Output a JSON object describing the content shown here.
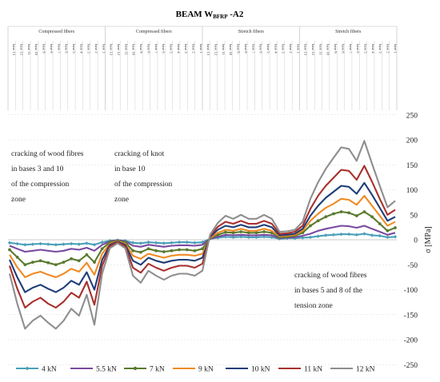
{
  "chart_data": {
    "type": "line",
    "title": {
      "main": "BEAM W",
      "sub": "BFRP",
      "rest": " -A2"
    },
    "sections": [
      "Compressed fibers",
      "Compressed fibers",
      "Stretch fibers",
      "Stretch fibers"
    ],
    "section_base_labels": [
      [
        "base 13",
        "base 12",
        "base 11",
        "base 10",
        "base 9",
        "base 8",
        "base 7",
        "base 6",
        "base 5",
        "base 4",
        "base 3",
        "base 2",
        "base 1"
      ],
      [
        "base 13",
        "base 12",
        "base 11",
        "base 10",
        "base 9",
        "base 8",
        "base 7",
        "base 6",
        "base 5",
        "base 4",
        "base 3",
        "base 2",
        "base 1"
      ],
      [
        "base 13",
        "base 12",
        "base 11",
        "base 10",
        "base 9",
        "base 8",
        "base 7",
        "base 6",
        "base 5",
        "base 4",
        "base 3",
        "base 2",
        "base 1"
      ],
      [
        "base 13",
        "base 12",
        "base 11",
        "base 10",
        "base 9",
        "base 8",
        "base 7",
        "base 6",
        "base 5",
        "base 4",
        "base 3",
        "base 2",
        "base 1"
      ]
    ],
    "ylabel": "σ [MPa]",
    "ylim": [
      -250,
      250
    ],
    "yticks": [
      "250",
      "200",
      "150",
      "100",
      "50",
      "0",
      "-50",
      "-100",
      "-150",
      "-200",
      "-250"
    ],
    "annotations": [
      [
        "cracking of wood fibres",
        "in bases 3 and 10",
        "of the compression",
        "zone"
      ],
      [
        "cracking of knot",
        "in base 10",
        "of    the    compression",
        "zone"
      ],
      [
        "cracking of wood fibres",
        "in bases 5 and 8 of the",
        "tension zone"
      ]
    ],
    "series": [
      {
        "name": "4 kN",
        "color": "#4a9fb8",
        "marker": "diamond",
        "values": [
          -6,
          -8,
          -10,
          -9,
          -8,
          -9,
          -10,
          -9,
          -8,
          -9,
          -7,
          -10,
          -5,
          -2,
          -1,
          -2,
          -6,
          -7,
          -5,
          -6,
          -7,
          -6,
          -5,
          -5,
          -6,
          -5,
          2,
          4,
          6,
          5,
          6,
          5,
          5,
          6,
          5,
          2,
          3,
          3,
          4,
          5,
          7,
          9,
          10,
          11,
          11,
          10,
          12,
          9,
          8,
          5,
          6
        ]
      },
      {
        "name": "5.5 kN",
        "color": "#7a4aa0",
        "marker": "none",
        "values": [
          -12,
          -18,
          -24,
          -22,
          -20,
          -22,
          -24,
          -22,
          -18,
          -20,
          -16,
          -22,
          -10,
          -3,
          -1,
          -3,
          -12,
          -14,
          -10,
          -12,
          -14,
          -12,
          -11,
          -11,
          -12,
          -10,
          2,
          6,
          10,
          9,
          10,
          9,
          9,
          10,
          9,
          3,
          4,
          5,
          8,
          12,
          18,
          22,
          25,
          28,
          27,
          24,
          28,
          22,
          16,
          10,
          14
        ]
      },
      {
        "name": "7 kN",
        "color": "#5a7a2e",
        "marker": "circle",
        "values": [
          -20,
          -35,
          -50,
          -45,
          -42,
          -46,
          -50,
          -45,
          -38,
          -42,
          -30,
          -45,
          -18,
          -5,
          -2,
          -5,
          -22,
          -25,
          -18,
          -22,
          -24,
          -22,
          -20,
          -20,
          -22,
          -18,
          3,
          10,
          15,
          14,
          16,
          14,
          14,
          16,
          14,
          5,
          6,
          8,
          14,
          28,
          38,
          46,
          52,
          56,
          54,
          48,
          56,
          46,
          32,
          18,
          24
        ]
      },
      {
        "name": "9 kN",
        "color": "#f08a24",
        "marker": "none",
        "values": [
          -30,
          -55,
          -75,
          -68,
          -64,
          -70,
          -75,
          -68,
          -58,
          -64,
          -46,
          -70,
          -28,
          -8,
          -3,
          -8,
          -32,
          -38,
          -28,
          -32,
          -36,
          -32,
          -30,
          -30,
          -32,
          -28,
          4,
          14,
          20,
          18,
          22,
          18,
          18,
          22,
          18,
          7,
          8,
          10,
          18,
          38,
          52,
          64,
          72,
          82,
          80,
          70,
          88,
          68,
          48,
          28,
          36
        ]
      },
      {
        "name": "10 kN",
        "color": "#1f3e78",
        "marker": "none",
        "values": [
          -40,
          -75,
          -105,
          -96,
          -90,
          -98,
          -105,
          -96,
          -82,
          -90,
          -65,
          -100,
          -40,
          -10,
          -4,
          -10,
          -42,
          -50,
          -36,
          -42,
          -46,
          -42,
          -40,
          -40,
          -42,
          -36,
          6,
          20,
          28,
          25,
          30,
          25,
          25,
          30,
          25,
          9,
          10,
          12,
          22,
          48,
          68,
          84,
          96,
          108,
          106,
          92,
          114,
          90,
          64,
          38,
          46
        ]
      },
      {
        "name": "11 kN",
        "color": "#a8302e",
        "marker": "none",
        "values": [
          -52,
          -98,
          -136,
          -124,
          -116,
          -128,
          -136,
          -124,
          -106,
          -116,
          -84,
          -130,
          -52,
          -13,
          -5,
          -13,
          -56,
          -66,
          -48,
          -56,
          -62,
          -56,
          -52,
          -52,
          -56,
          -48,
          8,
          26,
          36,
          32,
          38,
          32,
          32,
          38,
          32,
          12,
          13,
          16,
          28,
          62,
          88,
          108,
          124,
          140,
          138,
          120,
          148,
          116,
          82,
          50,
          60
        ]
      },
      {
        "name": "12 kN",
        "color": "#8e8e8e",
        "marker": "none",
        "values": [
          -68,
          -128,
          -178,
          -162,
          -152,
          -166,
          -178,
          -162,
          -138,
          -152,
          -110,
          -170,
          -68,
          -17,
          -7,
          -17,
          -72,
          -86,
          -62,
          -72,
          -80,
          -72,
          -68,
          -68,
          -72,
          -62,
          10,
          34,
          48,
          42,
          50,
          42,
          42,
          50,
          42,
          16,
          17,
          20,
          36,
          82,
          115,
          142,
          164,
          185,
          182,
          158,
          198,
          152,
          108,
          65,
          78
        ]
      }
    ]
  }
}
